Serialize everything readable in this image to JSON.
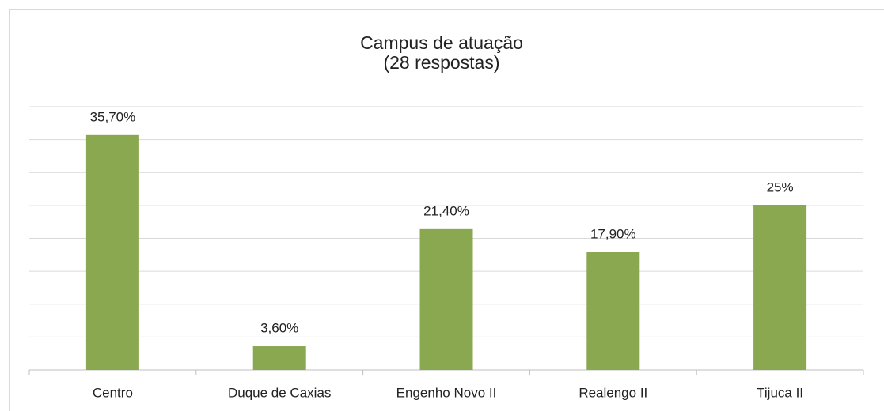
{
  "chart_data": {
    "type": "bar",
    "title": "Campus de atuação",
    "subtitle": "(28 respostas)",
    "categories": [
      "Centro",
      "Duque de Caxias",
      "Engenho Novo II",
      "Realengo II",
      "Tijuca II"
    ],
    "values": [
      35.7,
      3.6,
      21.4,
      17.9,
      25
    ],
    "value_labels": [
      "35,70%",
      "3,60%",
      "21,40%",
      "17,90%",
      "25%"
    ],
    "color": "#8aa84f",
    "ylim": [
      0,
      40
    ],
    "yticks": [
      0,
      5,
      10,
      15,
      20,
      25,
      30,
      35,
      40
    ],
    "grid": true
  }
}
